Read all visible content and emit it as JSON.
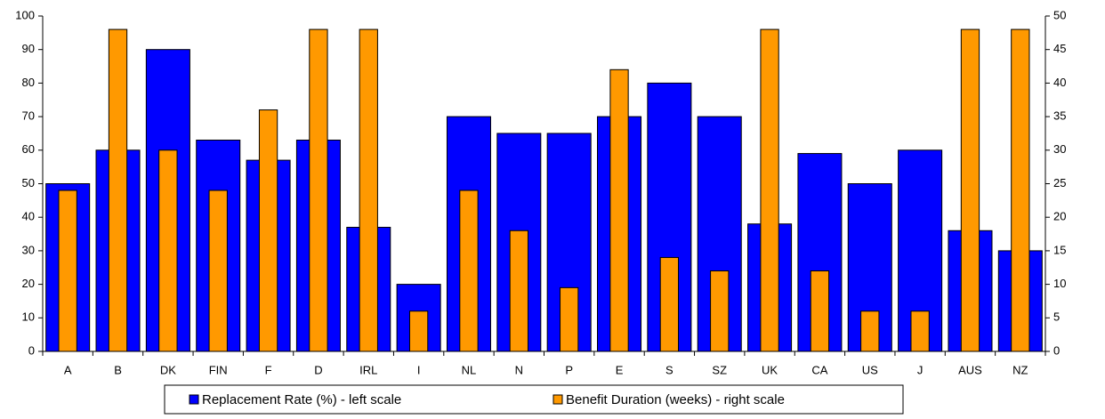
{
  "chart_data": {
    "type": "bar",
    "categories": [
      "A",
      "B",
      "DK",
      "FIN",
      "F",
      "D",
      "IRL",
      "I",
      "NL",
      "N",
      "P",
      "E",
      "S",
      "SZ",
      "UK",
      "CA",
      "US",
      "J",
      "AUS",
      "NZ"
    ],
    "series": [
      {
        "name": "Replacement Rate (%) - left scale",
        "color": "#0000ff",
        "values": [
          50,
          60,
          90,
          63,
          57,
          63,
          37,
          20,
          70,
          65,
          65,
          70,
          80,
          70,
          38,
          59,
          50,
          60,
          36,
          30
        ]
      },
      {
        "name": "Benefit Duration (weeks) - right scale",
        "color": "#ff9900",
        "axis": "y2",
        "values": [
          24,
          48,
          30,
          24,
          36,
          48,
          48,
          6,
          24,
          18,
          9.5,
          42,
          14,
          12,
          48,
          12,
          6,
          6,
          48,
          48
        ]
      }
    ],
    "ylim": [
      0,
      100
    ],
    "yticks": [
      0,
      10,
      20,
      30,
      40,
      50,
      60,
      70,
      80,
      90,
      100
    ],
    "y2lim": [
      0,
      50
    ],
    "y2ticks": [
      0,
      5,
      10,
      15,
      20,
      25,
      30,
      35,
      40,
      45,
      50
    ],
    "grid": false,
    "legend": "bottom"
  }
}
